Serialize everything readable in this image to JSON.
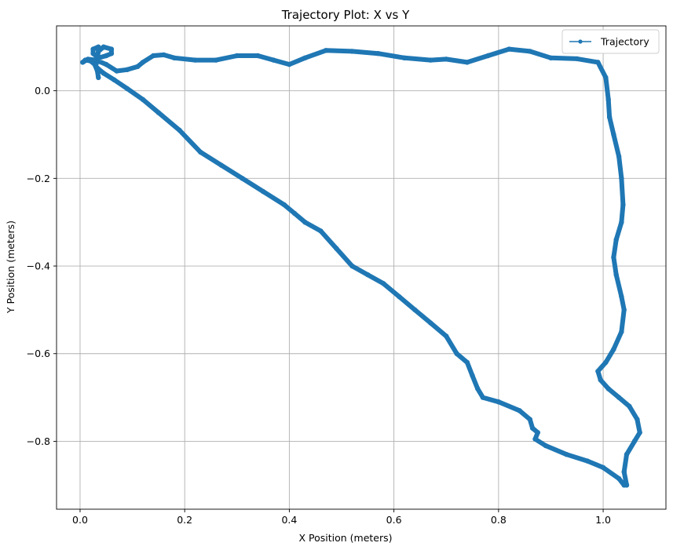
{
  "chart_data": {
    "type": "line",
    "title": "Trajectory Plot: X vs Y",
    "xlabel": "X Position (meters)",
    "ylabel": "Y Position (meters)",
    "xlim": [
      -0.045,
      1.12
    ],
    "ylim": [
      -0.955,
      0.148
    ],
    "xticks": [
      0.0,
      0.2,
      0.4,
      0.6,
      0.8,
      1.0
    ],
    "xtick_labels": [
      "0.0",
      "0.2",
      "0.4",
      "0.6",
      "0.8",
      "1.0"
    ],
    "yticks": [
      0.0,
      -0.2,
      -0.4,
      -0.6,
      -0.8
    ],
    "ytick_labels": [
      "0.0",
      "−0.2",
      "−0.4",
      "−0.6",
      "−0.8"
    ],
    "grid": true,
    "legend_position": "top-right",
    "series": [
      {
        "name": "Trajectory",
        "color": "#1f77b4",
        "x": [
          0.035,
          0.033,
          0.028,
          0.02,
          0.01,
          0.005,
          0.015,
          0.03,
          0.05,
          0.07,
          0.09,
          0.11,
          0.12,
          0.14,
          0.16,
          0.18,
          0.22,
          0.26,
          0.3,
          0.34,
          0.37,
          0.4,
          0.43,
          0.47,
          0.52,
          0.57,
          0.62,
          0.67,
          0.7,
          0.74,
          0.78,
          0.82,
          0.86,
          0.9,
          0.95,
          0.99,
          1.005,
          1.01,
          1.012,
          1.02,
          1.03,
          1.035,
          1.038,
          1.035,
          1.025,
          1.02,
          1.025,
          1.035,
          1.04,
          1.035,
          1.02,
          1.005,
          0.99,
          0.995,
          1.01,
          1.03,
          1.05,
          1.065,
          1.07,
          1.06,
          1.045,
          1.04,
          1.045,
          1.04,
          1.03,
          1.0,
          0.97,
          0.93,
          0.89,
          0.87,
          0.875,
          0.865,
          0.86,
          0.84,
          0.8,
          0.77,
          0.76,
          0.75,
          0.74,
          0.72,
          0.7,
          0.67,
          0.64,
          0.61,
          0.58,
          0.55,
          0.52,
          0.49,
          0.46,
          0.43,
          0.41,
          0.39,
          0.35,
          0.31,
          0.27,
          0.23,
          0.19,
          0.15,
          0.12,
          0.09,
          0.065,
          0.045,
          0.03,
          0.035,
          0.045,
          0.06,
          0.06,
          0.05,
          0.035,
          0.025,
          0.025,
          0.035
        ],
        "y": [
          0.03,
          0.045,
          0.06,
          0.068,
          0.07,
          0.065,
          0.072,
          0.07,
          0.06,
          0.045,
          0.048,
          0.055,
          0.065,
          0.08,
          0.082,
          0.075,
          0.07,
          0.07,
          0.08,
          0.08,
          0.07,
          0.06,
          0.075,
          0.092,
          0.09,
          0.085,
          0.075,
          0.07,
          0.072,
          0.065,
          0.08,
          0.095,
          0.09,
          0.075,
          0.073,
          0.065,
          0.03,
          -0.02,
          -0.06,
          -0.1,
          -0.15,
          -0.2,
          -0.26,
          -0.3,
          -0.34,
          -0.38,
          -0.42,
          -0.47,
          -0.5,
          -0.55,
          -0.59,
          -0.62,
          -0.64,
          -0.66,
          -0.68,
          -0.7,
          -0.72,
          -0.75,
          -0.78,
          -0.8,
          -0.83,
          -0.87,
          -0.9,
          -0.9,
          -0.885,
          -0.86,
          -0.845,
          -0.83,
          -0.81,
          -0.795,
          -0.78,
          -0.77,
          -0.75,
          -0.73,
          -0.71,
          -0.7,
          -0.68,
          -0.65,
          -0.62,
          -0.6,
          -0.56,
          -0.53,
          -0.5,
          -0.47,
          -0.44,
          -0.42,
          -0.4,
          -0.36,
          -0.32,
          -0.3,
          -0.28,
          -0.26,
          -0.23,
          -0.2,
          -0.17,
          -0.14,
          -0.09,
          -0.05,
          -0.02,
          0.005,
          0.025,
          0.04,
          0.055,
          0.09,
          0.1,
          0.095,
          0.085,
          0.08,
          0.075,
          0.085,
          0.095,
          0.1
        ]
      }
    ]
  }
}
